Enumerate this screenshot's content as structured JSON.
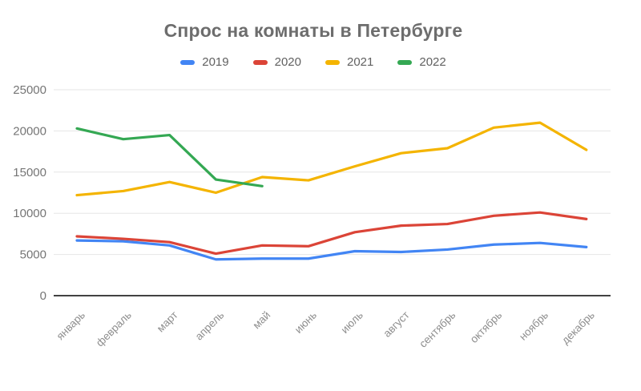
{
  "chart_data": {
    "type": "line",
    "title": "Спрос на комнаты в Петербурге",
    "categories": [
      "январь",
      "февраль",
      "март",
      "апрель",
      "май",
      "июнь",
      "июль",
      "август",
      "сентябрь",
      "октябрь",
      "ноябрь",
      "декабрь"
    ],
    "series": [
      {
        "name": "2019",
        "color": "#4285F4",
        "values": [
          6700,
          6600,
          6100,
          4400,
          4500,
          4500,
          5400,
          5300,
          5600,
          6200,
          6400,
          5900
        ]
      },
      {
        "name": "2020",
        "color": "#DB4437",
        "values": [
          7200,
          6900,
          6500,
          5100,
          6100,
          6000,
          7700,
          8500,
          8700,
          9700,
          10100,
          9300
        ]
      },
      {
        "name": "2021",
        "color": "#F4B400",
        "values": [
          12200,
          12700,
          13800,
          12500,
          14400,
          14000,
          15700,
          17300,
          17900,
          20400,
          21000,
          17700
        ]
      },
      {
        "name": "2022",
        "color": "#34A853",
        "values": [
          20300,
          19000,
          19500,
          14100,
          13300,
          null,
          null,
          null,
          null,
          null,
          null,
          null
        ]
      }
    ],
    "xlabel": "",
    "ylabel": "",
    "ylim": [
      0,
      25000
    ],
    "yticks": [
      0,
      5000,
      10000,
      15000,
      20000,
      25000
    ],
    "grid": true,
    "legend_position": "top",
    "axis_colors": {
      "gridline": "#e6e6e6",
      "baseline": "#424242",
      "ytick_text": "#757575",
      "xtick_text": "#8e8e8e",
      "title_text": "#6d6d6d"
    }
  }
}
